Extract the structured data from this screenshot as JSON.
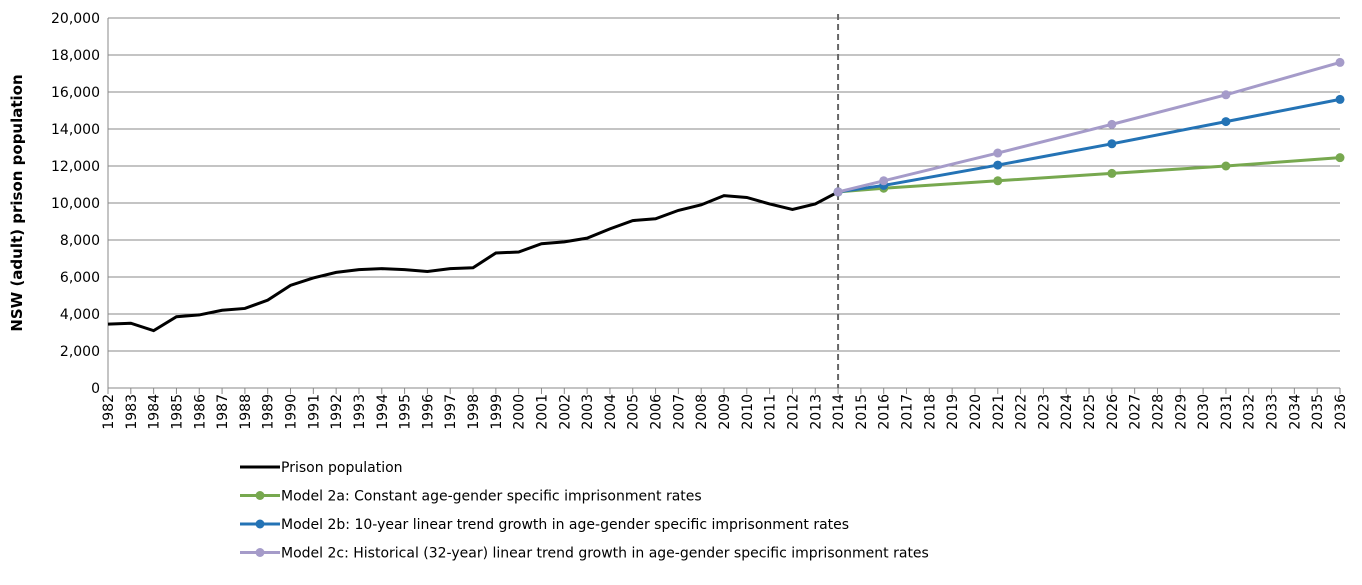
{
  "chart_data": {
    "type": "line",
    "y_label": "NSW (adult) prison population",
    "xlim": [
      1982,
      2036
    ],
    "xticks": [
      1982,
      1983,
      1984,
      1985,
      1986,
      1987,
      1988,
      1989,
      1990,
      1991,
      1992,
      1993,
      1994,
      1995,
      1996,
      1997,
      1998,
      1999,
      2000,
      2001,
      2002,
      2003,
      2004,
      2005,
      2006,
      2007,
      2008,
      2009,
      2010,
      2011,
      2012,
      2013,
      2014,
      2015,
      2016,
      2017,
      2018,
      2019,
      2020,
      2021,
      2022,
      2023,
      2024,
      2025,
      2026,
      2027,
      2028,
      2029,
      2030,
      2031,
      2032,
      2033,
      2034,
      2035,
      2036
    ],
    "ylim": [
      0,
      20000
    ],
    "yticks": [
      0,
      {
        "value": 2000,
        "label": "2,000"
      },
      {
        "value": 4000,
        "label": "4,000"
      },
      {
        "value": 6000,
        "label": "6,000"
      },
      {
        "value": 8000,
        "label": "8,000"
      },
      {
        "value": 10000,
        "label": "10,000"
      },
      {
        "value": 12000,
        "label": "12,000"
      },
      {
        "value": 14000,
        "label": "14,000"
      },
      {
        "value": 16000,
        "label": "16,000"
      },
      {
        "value": 18000,
        "label": "18,000"
      },
      {
        "value": 20000,
        "label": "20,000"
      }
    ],
    "grid": true,
    "vline": 2014,
    "legend": "bottom",
    "series": [
      {
        "name": "Prison population",
        "color": "#000000",
        "markers": false,
        "x": [
          1982,
          1983,
          1984,
          1985,
          1986,
          1987,
          1988,
          1989,
          1990,
          1991,
          1992,
          1993,
          1994,
          1995,
          1996,
          1997,
          1998,
          1999,
          2000,
          2001,
          2002,
          2003,
          2004,
          2005,
          2006,
          2007,
          2008,
          2009,
          2010,
          2011,
          2012,
          2013,
          2014
        ],
        "values": [
          3450,
          3500,
          3100,
          3850,
          3950,
          4200,
          4300,
          4750,
          5550,
          5950,
          6250,
          6400,
          6450,
          6400,
          6300,
          6450,
          6500,
          7300,
          7350,
          7800,
          7900,
          8100,
          8600,
          9050,
          9150,
          9600,
          9900,
          10400,
          10300,
          9950,
          9650,
          9950,
          10600
        ]
      },
      {
        "name": "Model 2a: Constant age-gender specific imprisonment rates",
        "color": "#77a84f",
        "markers": true,
        "x": [
          2014,
          2016,
          2021,
          2026,
          2031,
          2036
        ],
        "values": [
          10600,
          10800,
          11200,
          11600,
          12000,
          12450
        ]
      },
      {
        "name": "Model 2b: 10-year linear trend growth in age-gender specific imprisonment rates",
        "color": "#2473b5",
        "markers": true,
        "x": [
          2014,
          2016,
          2021,
          2026,
          2031,
          2036
        ],
        "values": [
          10600,
          10950,
          12050,
          13200,
          14400,
          15600
        ]
      },
      {
        "name": "Model 2c: Historical (32-year) linear trend growth in age-gender specific imprisonment rates",
        "color": "#a59bc9",
        "markers": true,
        "x": [
          2014,
          2016,
          2021,
          2026,
          2031,
          2036
        ],
        "values": [
          10600,
          11200,
          12700,
          14250,
          15850,
          17600
        ]
      }
    ]
  }
}
